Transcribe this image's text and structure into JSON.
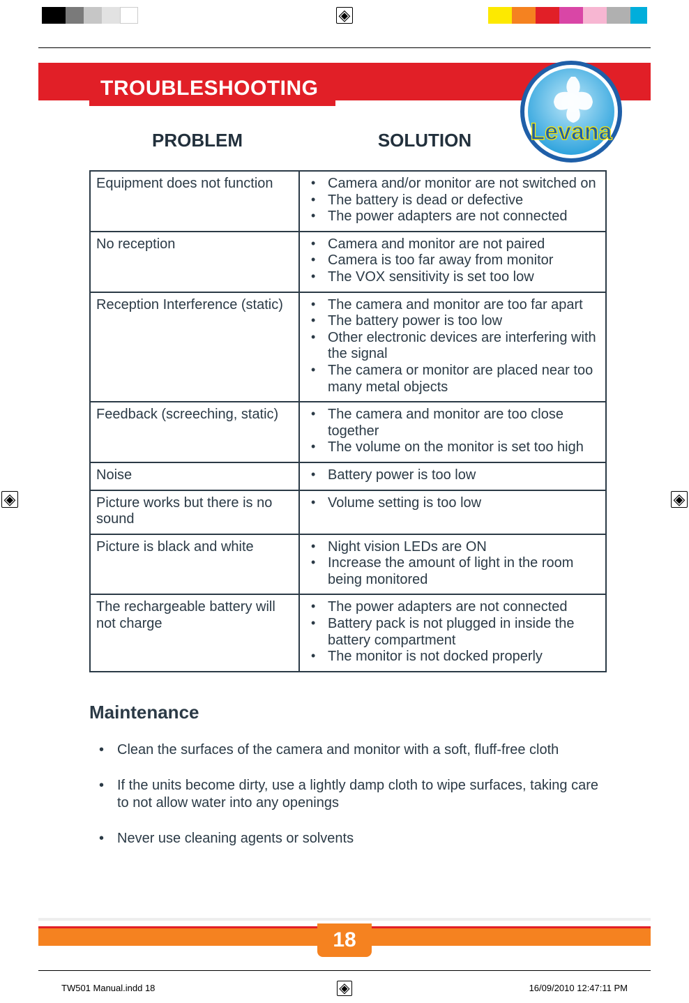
{
  "colors": {
    "red": "#e11f27",
    "orange": "#f58220",
    "text": "#2b3a46",
    "logo_blue": "#2ea3dd",
    "logo_text": "#1f5fa8",
    "bar_yellow": "#fde900",
    "bar_orange": "#f58220",
    "bar_red": "#e11f27",
    "bar_magenta": "#d946a6",
    "bar_pink": "#f7b6d2",
    "bar_gray": "#b0b0b0",
    "bar_cyan": "#00aedb"
  },
  "section_title": "TROUBLESHOOTING",
  "col_problem": "PROBLEM",
  "col_solution": "SOLUTION",
  "logo_text": "Levana",
  "table": [
    {
      "problem": "Equipment does not function",
      "solutions": [
        "Camera and/or monitor are not switched on",
        "The battery is dead or defective",
        "The power adapters are not connected"
      ]
    },
    {
      "problem": "No reception",
      "solutions": [
        "Camera and monitor are not paired",
        "Camera is too far away from monitor",
        "The VOX sensitivity is set too low"
      ]
    },
    {
      "problem": "Reception Interference (static)",
      "solutions": [
        "The camera and monitor are too far apart",
        "The battery power is too low",
        "Other electronic devices are interfering with the signal",
        "The camera or monitor are placed near too many metal objects"
      ]
    },
    {
      "problem": "Feedback (screeching, static)",
      "solutions": [
        "The camera and monitor are too close together",
        "The volume on the monitor is set too high"
      ]
    },
    {
      "problem": "Noise",
      "solutions": [
        "Battery power is too low"
      ]
    },
    {
      "problem": "Picture works but there is no sound",
      "solutions": [
        "Volume setting is too low"
      ]
    },
    {
      "problem": "Picture is black and white",
      "solutions": [
        "Night vision LEDs are ON",
        "Increase the amount of light in the room being monitored"
      ]
    },
    {
      "problem": "The rechargeable battery will not charge",
      "solutions": [
        "The power adapters are not connected",
        "Battery pack is not plugged in inside the battery compartment",
        "The monitor is not docked properly"
      ]
    }
  ],
  "maintenance_heading": "Maintenance",
  "maintenance_items": [
    "Clean the surfaces of the camera and monitor with a soft, fluff-free cloth",
    "If the units become dirty, use a lightly damp cloth to wipe surfaces, taking care to not allow water into any openings",
    "Never use cleaning agents or solvents"
  ],
  "page_number": "18",
  "footer_file": "TW501 Manual.indd   18",
  "footer_date": "16/09/2010   12:47:11 PM"
}
